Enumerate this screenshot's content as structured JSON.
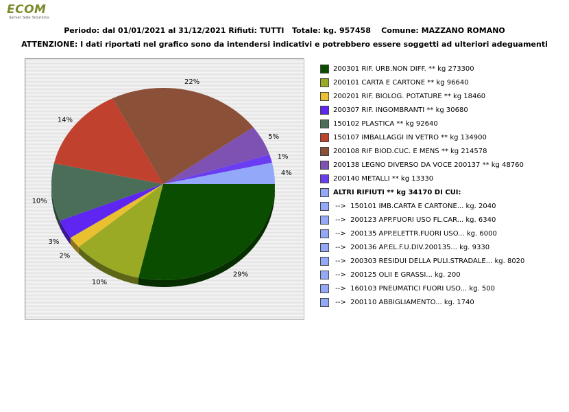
{
  "logo": {
    "name": "ECOM",
    "tagline": "Server Side Solutions"
  },
  "header": {
    "line1": "Periodo: dal 01/01/2021 al 31/12/2021 Rifiuti: TUTTI   Totale: kg. 957458    Comune: MAZZANO ROMANO",
    "line2": "ATTENZIONE: I dati riportati nel grafico sono da intendersi indicativi e potrebbero essere soggetti ad ulteriori adeguamenti"
  },
  "chart_data": {
    "type": "pie",
    "slices": [
      {
        "label": "200301 RIF. URB.NON DIFF. ** kg 273300",
        "value": 273300,
        "percent_label": "29%",
        "color": "#0b4d00"
      },
      {
        "label": "200101 CARTA E CARTONE ** kg 96640",
        "value": 96640,
        "percent_label": "10%",
        "color": "#9aaa24"
      },
      {
        "label": "200201 RIF. BIOLOG. POTATURE ** kg 18460",
        "value": 18460,
        "percent_label": "2%",
        "color": "#e8c030"
      },
      {
        "label": "200307 RIF. INGOMBRANTI ** kg 30680",
        "value": 30680,
        "percent_label": "3%",
        "color": "#5e26f0"
      },
      {
        "label": "150102 PLASTICA ** kg 92640",
        "value": 92640,
        "percent_label": "10%",
        "color": "#4b6e59"
      },
      {
        "label": "150107 IMBALLAGGI IN VETRO ** kg 134900",
        "value": 134900,
        "percent_label": "14%",
        "color": "#c0412e"
      },
      {
        "label": "200108 RIF BIOD.CUC. E MENS ** kg 214578",
        "value": 214578,
        "percent_label": "22%",
        "color": "#8b5038"
      },
      {
        "label": "200138 LEGNO DIVERSO DA VOCE 200137 ** kg 48760",
        "value": 48760,
        "percent_label": "5%",
        "color": "#7e52b2"
      },
      {
        "label": "200140 METALLI ** kg 13330",
        "value": 13330,
        "percent_label": "1%",
        "color": "#6a3cf2"
      },
      {
        "label": "ALTRI RIFIUTI ** kg 34170 DI CUI:",
        "value": 34170,
        "percent_label": "4%",
        "color": "#93a8f8"
      }
    ],
    "breakdown": [
      {
        "label": " -->  150101 IMB.CARTA E CARTONE... kg. 2040",
        "color": "#93a8f8"
      },
      {
        "label": " -->  200123 APP.FUORI USO FL.CAR... kg. 6340",
        "color": "#93a8f8"
      },
      {
        "label": " -->  200135 APP.ELETTR.FUORI USO... kg. 6000",
        "color": "#93a8f8"
      },
      {
        "label": " -->  200136 AP.EL.F.U.DIV.200135... kg. 9330",
        "color": "#93a8f8"
      },
      {
        "label": " -->  200303 RESIDUI DELLA PULI.STRADALE... kg. 8020",
        "color": "#93a8f8"
      },
      {
        "label": " -->  200125 OLII E GRASSI... kg. 200",
        "color": "#93a8f8"
      },
      {
        "label": " -->  160103 PNEUMATICI FUORI USO... kg. 500",
        "color": "#93a8f8"
      },
      {
        "label": " -->  200110 ABBIGLIAMENTO... kg. 1740",
        "color": "#93a8f8"
      }
    ],
    "bold_legend_labels": [
      "ALTRI RIFIUTI ** kg 34170 DI CUI:"
    ],
    "legend_position": "right",
    "style": "3d"
  }
}
